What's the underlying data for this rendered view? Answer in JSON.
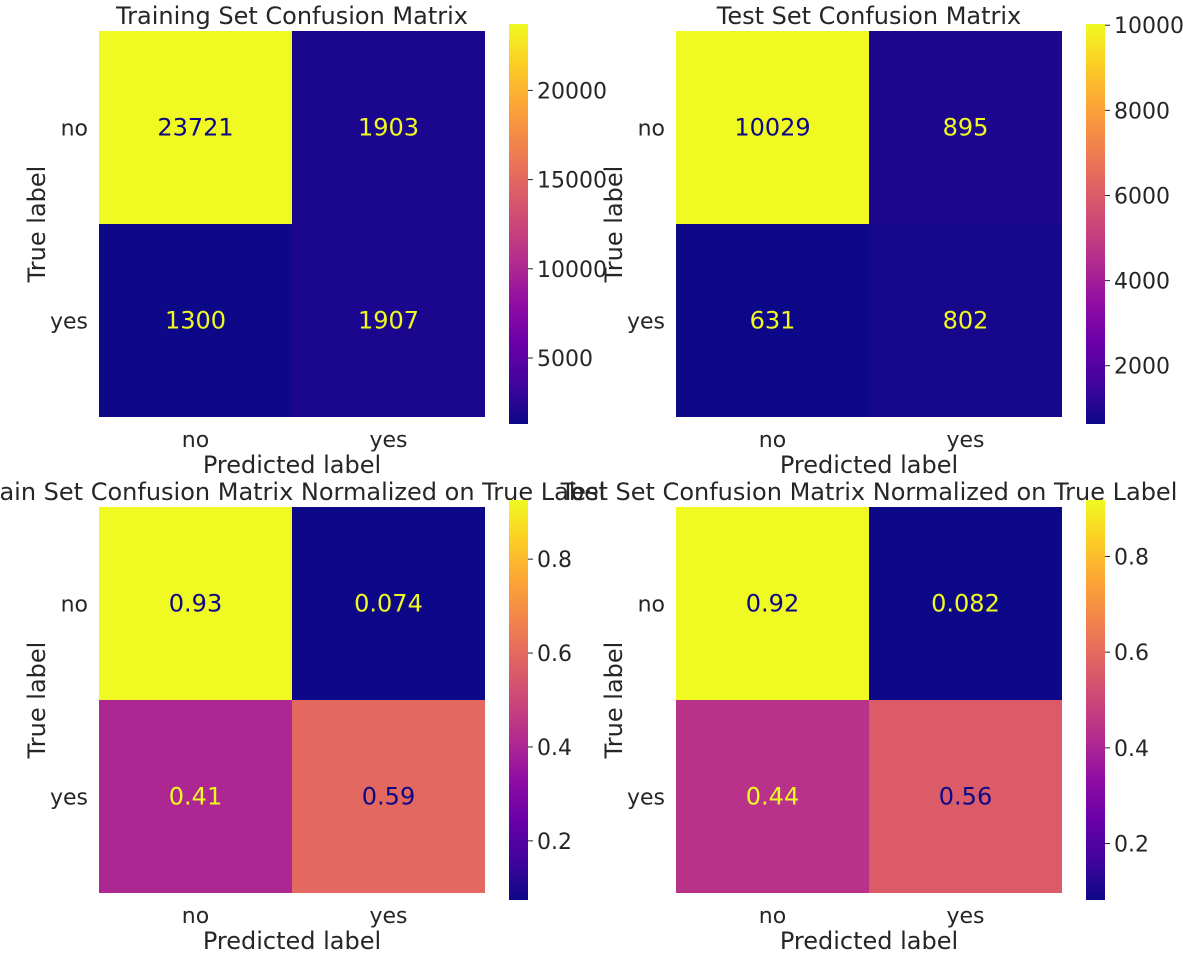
{
  "chart_data": [
    {
      "type": "heatmap",
      "title": "Training Set Confusion Matrix",
      "xlabel": "Predicted label",
      "ylabel": "True label",
      "x_categories": [
        "no",
        "yes"
      ],
      "y_categories": [
        "no",
        "yes"
      ],
      "values": [
        [
          23721,
          1903
        ],
        [
          1300,
          1907
        ]
      ],
      "cell_labels": [
        [
          "23721",
          "1903"
        ],
        [
          "1300",
          "1907"
        ]
      ],
      "colormap": "plasma",
      "colorbar": {
        "min": 1300,
        "max": 23721,
        "ticks": [
          5000,
          10000,
          15000,
          20000
        ],
        "tick_labels": [
          "5000",
          "10000",
          "15000",
          "20000"
        ]
      },
      "grid": false
    },
    {
      "type": "heatmap",
      "title": "Test Set Confusion Matrix",
      "xlabel": "Predicted label",
      "ylabel": "True label",
      "x_categories": [
        "no",
        "yes"
      ],
      "y_categories": [
        "no",
        "yes"
      ],
      "values": [
        [
          10029,
          895
        ],
        [
          631,
          802
        ]
      ],
      "cell_labels": [
        [
          "10029",
          "895"
        ],
        [
          "631",
          "802"
        ]
      ],
      "colormap": "plasma",
      "colorbar": {
        "min": 631,
        "max": 10029,
        "ticks": [
          2000,
          4000,
          6000,
          8000,
          10000
        ],
        "tick_labels": [
          "2000",
          "4000",
          "6000",
          "8000",
          "10000"
        ]
      },
      "grid": false
    },
    {
      "type": "heatmap",
      "title": "Train Set Confusion Matrix Normalized on True Label",
      "xlabel": "Predicted label",
      "ylabel": "True label",
      "x_categories": [
        "no",
        "yes"
      ],
      "y_categories": [
        "no",
        "yes"
      ],
      "values": [
        [
          0.926,
          0.074
        ],
        [
          0.405,
          0.595
        ]
      ],
      "cell_labels": [
        [
          "0.93",
          "0.074"
        ],
        [
          "0.41",
          "0.59"
        ]
      ],
      "colormap": "plasma",
      "colorbar": {
        "min": 0.074,
        "max": 0.926,
        "ticks": [
          0.2,
          0.4,
          0.6,
          0.8
        ],
        "tick_labels": [
          "0.2",
          "0.4",
          "0.6",
          "0.8"
        ]
      },
      "grid": false
    },
    {
      "type": "heatmap",
      "title": "Test Set Confusion Matrix Normalized on True Label",
      "xlabel": "Predicted label",
      "ylabel": "True label",
      "x_categories": [
        "no",
        "yes"
      ],
      "y_categories": [
        "no",
        "yes"
      ],
      "values": [
        [
          0.918,
          0.082
        ],
        [
          0.44,
          0.56
        ]
      ],
      "cell_labels": [
        [
          "0.92",
          "0.082"
        ],
        [
          "0.44",
          "0.56"
        ]
      ],
      "colormap": "plasma",
      "colorbar": {
        "min": 0.082,
        "max": 0.918,
        "ticks": [
          0.2,
          0.4,
          0.6,
          0.8
        ],
        "tick_labels": [
          "0.2",
          "0.4",
          "0.6",
          "0.8"
        ]
      },
      "grid": false
    }
  ]
}
